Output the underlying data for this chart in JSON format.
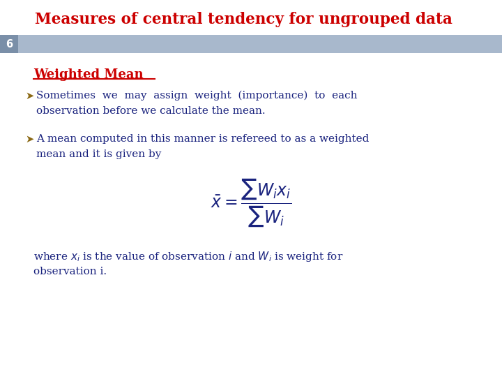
{
  "title": "Measures of central tendency for ungrouped data",
  "title_color": "#cc0000",
  "slide_number": "6",
  "header_bar_color": "#a8b8cc",
  "header_bar_dark": "#7a8fa8",
  "section_title": "Weighted Mean",
  "section_title_color": "#cc0000",
  "bullet_color": "#8B6914",
  "text_color": "#1a237e",
  "body_bg": "#ffffff",
  "bullet1_line1": "Sometimes  we  may  assign  weight  (importance)  to  each",
  "bullet1_line2": "observation before we calculate the mean.",
  "bullet2_line1": "A mean computed in this manner is refereed to as a weighted",
  "bullet2_line2": "mean and it is given by",
  "footnote1": "where $x_i$ is the value of observation $i$ and $W_i$ is weight for",
  "footnote2": "observation i."
}
